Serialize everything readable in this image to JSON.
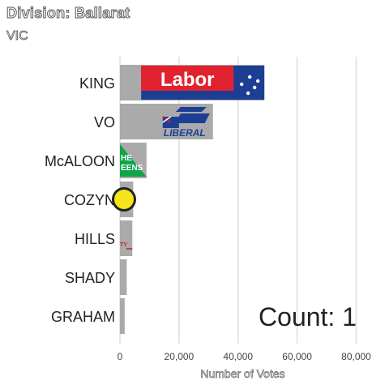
{
  "header": {
    "title": "Division: Ballarat",
    "subtitle": "VIC"
  },
  "chart_data": {
    "type": "bar",
    "orientation": "horizontal",
    "categories": [
      "KING",
      "VO",
      "McALOON",
      "COZYN",
      "HILLS",
      "SHADY",
      "GRAHAM"
    ],
    "values": [
      48900,
      31500,
      9000,
      4500,
      4200,
      2300,
      1600
    ],
    "xlabel": "Number of Votes",
    "xlim": [
      0,
      87000
    ],
    "xticks": [
      0,
      20000,
      40000,
      60000,
      80000
    ],
    "xtick_labels": [
      "0",
      "20,000",
      "40,000",
      "60,000",
      "80,000"
    ],
    "grid": true,
    "bar_color": "#aaaaaa",
    "annotation": "Count:  1",
    "party_logos": [
      {
        "text": "Labor",
        "bg": "#e1232f",
        "fg": "#ffffff",
        "icon": "australian-flag-icon"
      },
      {
        "text": "LIBERAL",
        "bg": "#ffffff",
        "fg": "#1c3f94",
        "icon": "australian-flag-icon"
      },
      {
        "text": "HE EENS",
        "bg": "#10a449",
        "fg": "#ffffff",
        "icon": "greens-triangle-icon"
      },
      {
        "text": "",
        "bg": "#f5e51b",
        "fg": "#222222",
        "icon": "yellow-circle-icon"
      },
      {
        "text": "TY",
        "bg": "#ffffff",
        "fg": "#d11a2a",
        "icon": "party-text-icon"
      },
      null,
      null
    ]
  }
}
